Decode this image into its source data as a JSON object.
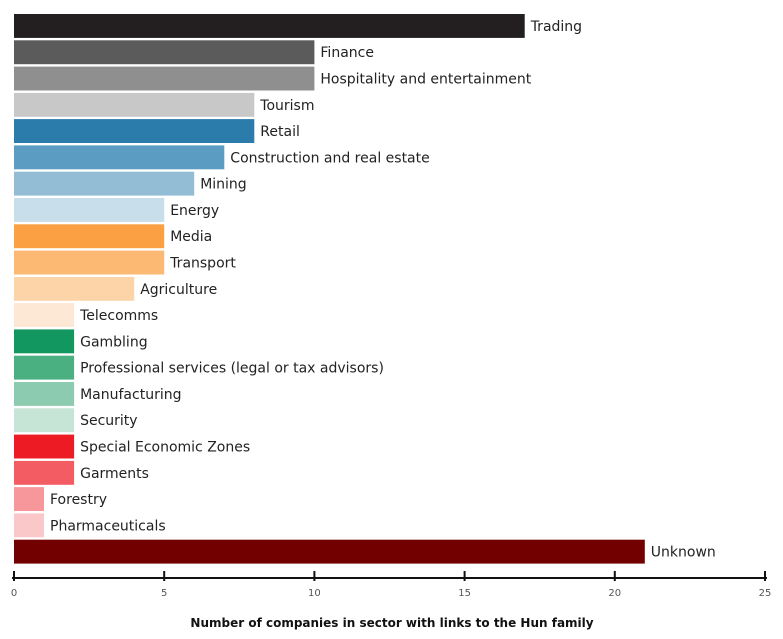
{
  "chart_data": {
    "type": "bar",
    "orientation": "horizontal",
    "title": "",
    "xlabel": "Number of companies in sector with links to the Hun family",
    "ylabel": "",
    "xlim": [
      0,
      25
    ],
    "xticks": [
      0,
      5,
      10,
      15,
      20,
      25
    ],
    "grid": false,
    "legend": "none",
    "categories": [
      "Trading",
      "Finance",
      "Hospitality and entertainment",
      "Tourism",
      "Retail",
      "Construction and real estate",
      "Mining",
      "Energy",
      "Media",
      "Transport",
      "Agriculture",
      "Telecomms",
      "Gambling",
      "Professional services (legal or tax advisors)",
      "Manufacturing",
      "Security",
      "Special Economic Zones",
      "Garments",
      "Forestry",
      "Pharmaceuticals",
      "Unknown"
    ],
    "values": [
      17,
      10,
      10,
      8,
      8,
      7,
      6,
      5,
      5,
      5,
      4,
      2,
      2,
      2,
      2,
      2,
      2,
      2,
      1,
      1,
      21
    ],
    "colors": [
      "#231f20",
      "#5b5b5b",
      "#8f8f8f",
      "#c8c8c8",
      "#2b7bab",
      "#5a9cc2",
      "#93bcd5",
      "#c8deea",
      "#fca143",
      "#fbb974",
      "#fcd4a8",
      "#fde8d6",
      "#11975f",
      "#4bb081",
      "#8ccbaf",
      "#c6e5d7",
      "#ed1c24",
      "#f35c62",
      "#f7979b",
      "#fbc8ca",
      "#720000"
    ]
  }
}
